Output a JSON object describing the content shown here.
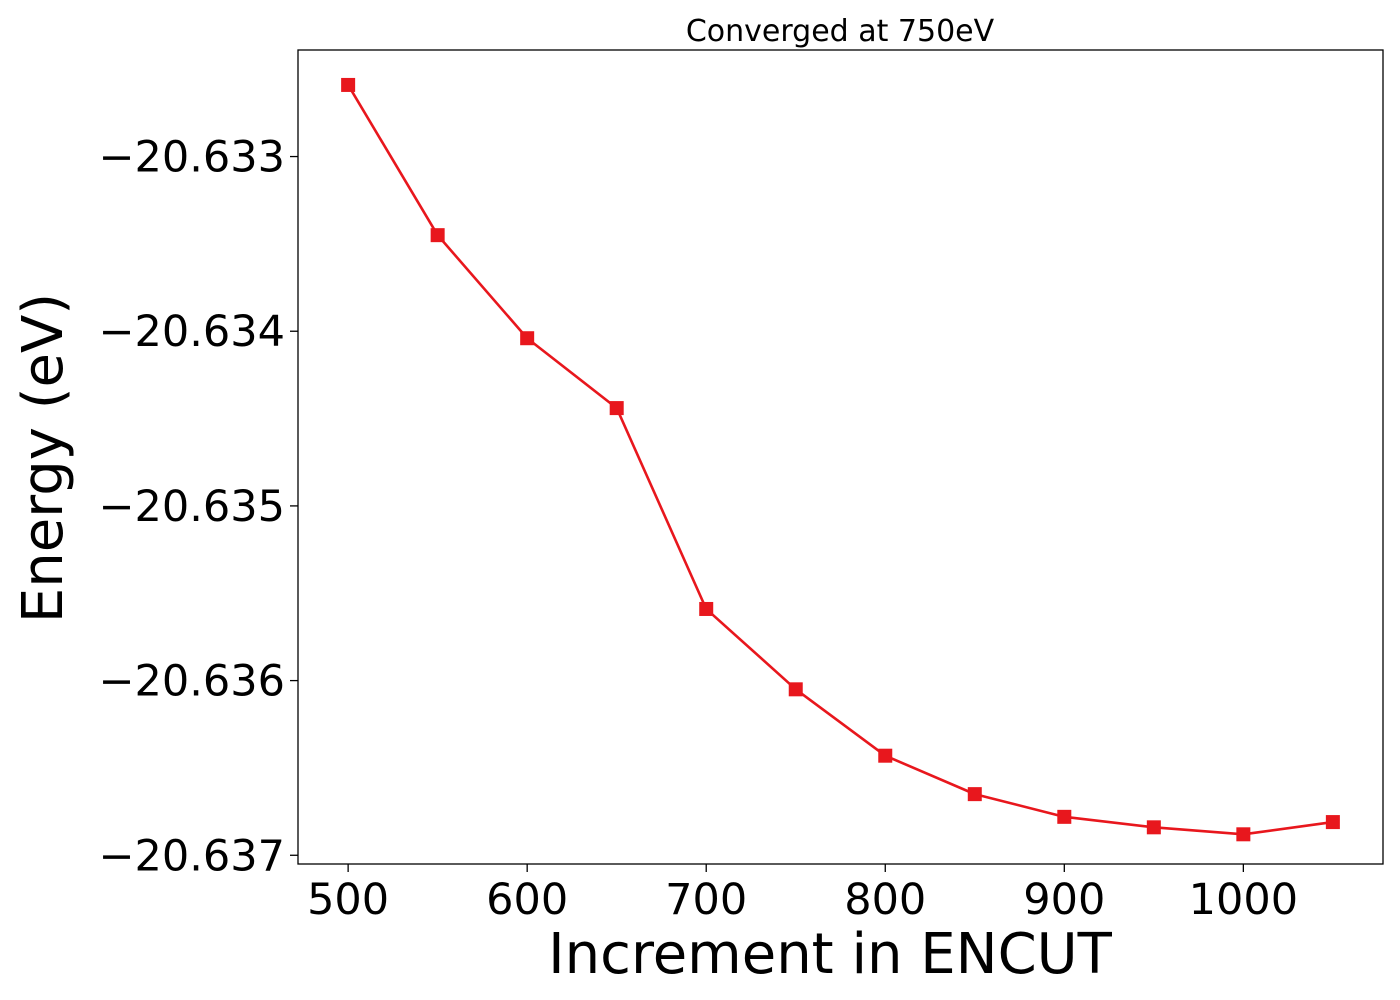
{
  "chart_data": {
    "type": "line",
    "title": "Converged at 750eV",
    "xlabel": "Increment in ENCUT",
    "ylabel": "Energy (eV)",
    "xlim": [
      472,
      1078
    ],
    "ylim": [
      -20.63705,
      -20.63239
    ],
    "x_ticks": [
      500,
      600,
      700,
      800,
      900,
      1000
    ],
    "x_tick_labels": [
      "500",
      "600",
      "700",
      "800",
      "900",
      "1000"
    ],
    "y_ticks": [
      -20.633,
      -20.634,
      -20.635,
      -20.636,
      -20.637
    ],
    "y_tick_labels": [
      "−20.633",
      "−20.634",
      "−20.635",
      "−20.636",
      "−20.637"
    ],
    "grid": false,
    "series": [
      {
        "color": "#e8171d",
        "marker": "square",
        "x": [
          500,
          550,
          600,
          650,
          700,
          750,
          800,
          850,
          900,
          950,
          1000,
          1050
        ],
        "y": [
          -20.63259,
          -20.63345,
          -20.63404,
          -20.63444,
          -20.63559,
          -20.63605,
          -20.63643,
          -20.63665,
          -20.63678,
          -20.63684,
          -20.63688,
          -20.63681
        ]
      }
    ]
  }
}
